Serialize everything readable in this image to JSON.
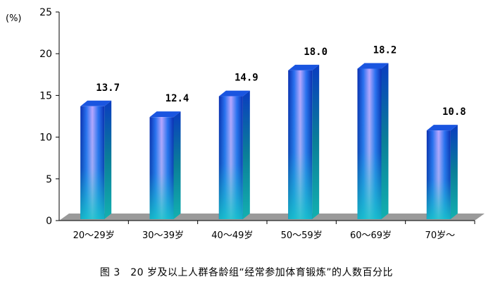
{
  "caption": "图 3　20 岁及以上人群各龄组“经常参加体育锻炼”的人数百分比",
  "chart_data": {
    "type": "bar",
    "title": "",
    "xlabel": "",
    "ylabel": "(%)",
    "ylim": [
      0,
      25
    ],
    "yticks": [
      0,
      5,
      10,
      15,
      20,
      25
    ],
    "categories": [
      "20～29岁",
      "30～39岁",
      "40～49岁",
      "50～59岁",
      "60～69岁",
      "70岁～"
    ],
    "values": [
      13.7,
      12.4,
      14.9,
      18.0,
      18.2,
      10.8
    ],
    "value_labels": [
      "13.7",
      "12.4",
      "14.9",
      "18.0",
      "18.2",
      "10.8"
    ],
    "grid": false,
    "legend": "none",
    "colors": {
      "bar_dark": "#0b2fb0",
      "bar_mid": "#2a6ff0",
      "bar_light": "#b9a6ff",
      "bar_cyan": "#17c9c9",
      "bar_side": "#0a7f98",
      "bar_top": "#1a55e0",
      "floor": "#9a9a9a"
    }
  }
}
